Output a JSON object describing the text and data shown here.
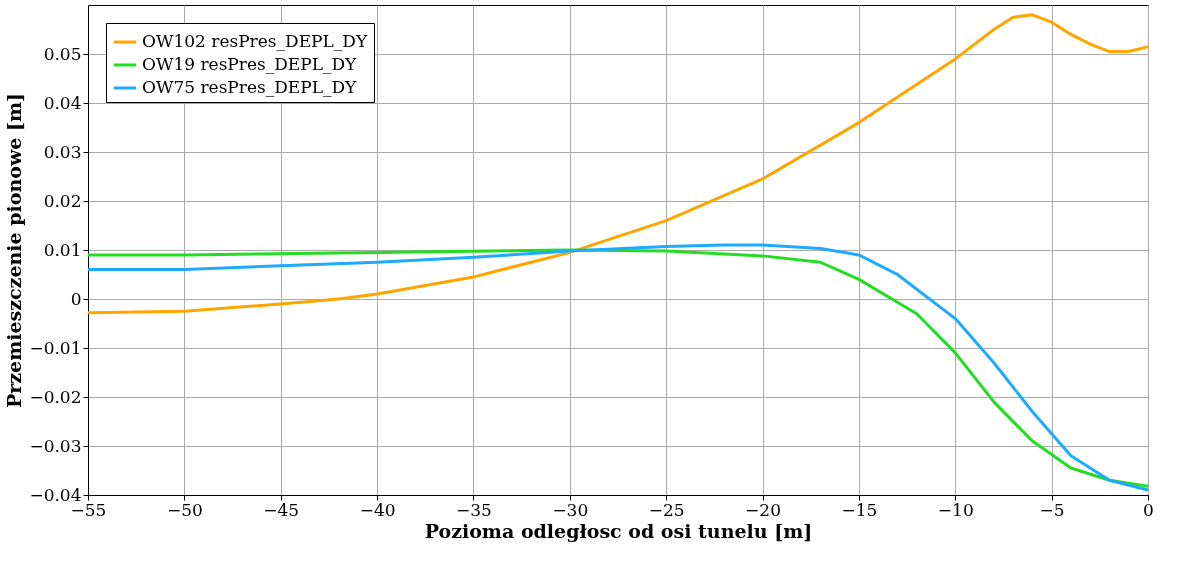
{
  "chart_data": {
    "type": "line",
    "xlabel": "Pozioma odległosc od osi tunelu [m]",
    "ylabel": "Przemieszczenie pionowe [m]",
    "xlim": [
      -55,
      0
    ],
    "xticks": [
      -55,
      -50,
      -45,
      -40,
      -35,
      -30,
      -25,
      -20,
      -15,
      -10,
      -5,
      0
    ],
    "ylim": [
      -0.04,
      0.06
    ],
    "yticks": [
      -0.04,
      -0.03,
      -0.02,
      -0.01,
      0,
      0.01,
      0.02,
      0.03,
      0.04,
      0.05
    ],
    "grid": true,
    "legend": "top left",
    "marker": "none",
    "line_style": "solid",
    "series": [
      {
        "name": "OW102 resPres_DEPL_DY",
        "color": "#ffa500",
        "x": [
          -55,
          -50,
          -45,
          -42,
          -40,
          -35,
          -30,
          -25,
          -20,
          -15,
          -10,
          -8,
          -7,
          -6,
          -5,
          -4,
          -3,
          -2,
          -1,
          0
        ],
        "values": [
          -0.0028,
          -0.0025,
          -0.001,
          0,
          0.001,
          0.0045,
          0.0095,
          0.016,
          0.0245,
          0.036,
          0.049,
          0.055,
          0.0575,
          0.058,
          0.0565,
          0.054,
          0.052,
          0.0505,
          0.0505,
          0.0515
        ]
      },
      {
        "name": "OW19 resPres_DEPL_DY",
        "color": "#22dd22",
        "x": [
          -55,
          -50,
          -40,
          -30,
          -25,
          -20,
          -17,
          -15,
          -12,
          -10,
          -8,
          -6,
          -4,
          -2,
          0
        ],
        "values": [
          0.009,
          0.009,
          0.0095,
          0.01,
          0.0098,
          0.0088,
          0.0075,
          0.004,
          -0.003,
          -0.011,
          -0.021,
          -0.029,
          -0.0345,
          -0.037,
          -0.0382
        ]
      },
      {
        "name": "OW75 resPres_DEPL_DY",
        "color": "#1eaaff",
        "x": [
          -55,
          -50,
          -45,
          -40,
          -35,
          -30,
          -25,
          -22,
          -20,
          -17,
          -15,
          -13,
          -10,
          -8,
          -6,
          -4,
          -2,
          0
        ],
        "values": [
          0.006,
          0.006,
          0.0068,
          0.0075,
          0.0085,
          0.0098,
          0.0107,
          0.011,
          0.011,
          0.0103,
          0.009,
          0.005,
          -0.004,
          -0.013,
          -0.023,
          -0.032,
          -0.037,
          -0.039
        ]
      }
    ]
  }
}
